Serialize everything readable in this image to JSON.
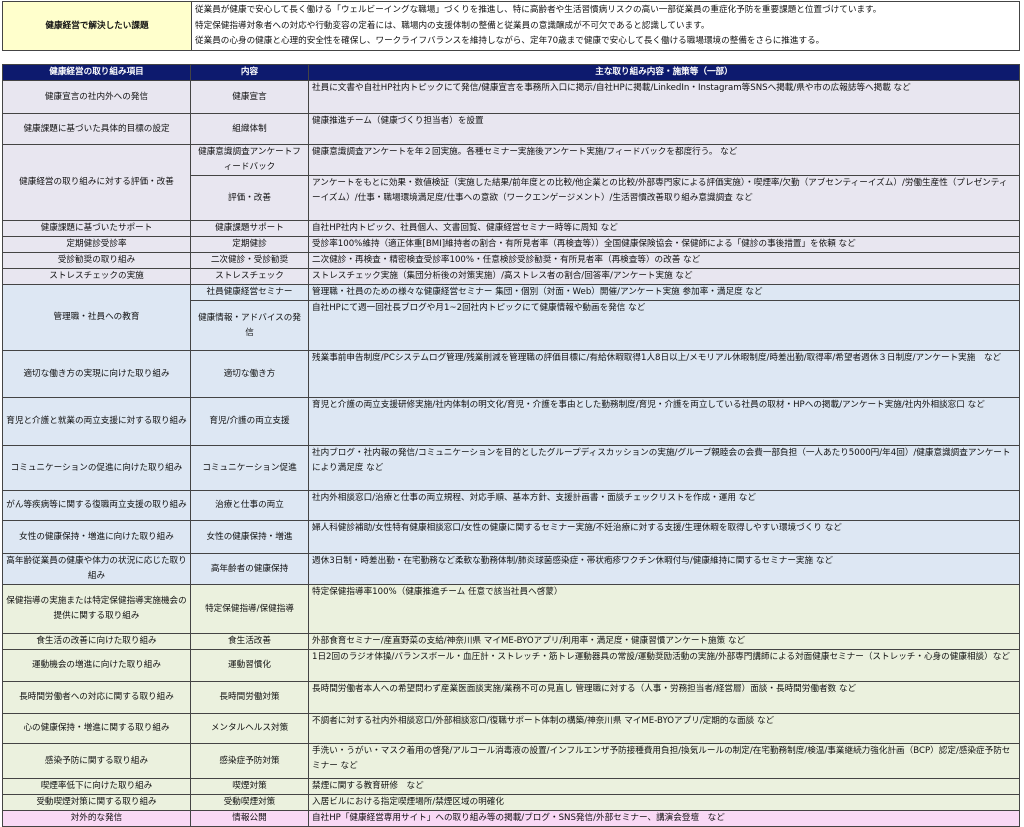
{
  "issue": {
    "label": "健康経営で解決したい課題",
    "lines": [
      "従業員が健康で安心して長く働ける「ウェルビーイングな職場」づくりを推進し、特に高齢者や生活習慣病リスクの高い一部従業員の重症化予防を重要課題と位置づけています。",
      "特定保健指導対象者への対応や行動変容の定着には、職場内の支援体制の整備と従業員の意識醸成が不可欠であると認識しています。",
      "従業員の心身の健康と心理的安全性を確保し、ワークライフバランスを維持しながら、定年70歳まで健康で安心して長く働ける職場環境の整備をさらに推進する。"
    ]
  },
  "table": {
    "headers": [
      "健康経営の取り組み項目",
      "内容",
      "主な取り組み内容・施策等（一部）"
    ],
    "colors": {
      "header": "#0d1a6e",
      "lavender": "#e8e6f0",
      "blue": "#dde7f3",
      "green": "#ebf1de",
      "pink": "#f9d9f5"
    },
    "groups": [
      {
        "item": "健康宣言の社内外への発信",
        "color": "lavender",
        "subs": [
          {
            "content": "健康宣言",
            "detail": "社員に文書や自社HP社内トピックにて発信/健康宣言を事務所入口に掲示/自社HPに掲載/LinkedIn・Instagram等SNSへ掲載/県や市の広報誌等へ掲載 など"
          }
        ]
      },
      {
        "item": "健康課題に基づいた具体的目標の設定",
        "color": "lavender",
        "subs": [
          {
            "content": "組織体制",
            "detail": "健康推進チーム（健康づくり担当者）を設置"
          }
        ]
      },
      {
        "item": "健康経営の取り組みに対する評価・改善",
        "color": "lavender",
        "subs": [
          {
            "content": "健康意識調査アンケートフィードバック",
            "detail": "健康意識調査アンケートを年２回実施。各種セミナー実施後アンケート実施/フィードバックを都度行う。 など"
          },
          {
            "content": "評価・改善",
            "detail": "アンケートをもとに効果・数値検証（実施した結果/前年度との比較/他企業との比較/外部専門家による評価実施）・喫煙率/欠勤（アブセンティーイズム）/労働生産性（プレゼンティーイズム）/仕事・職場環境満足度/仕事への意欲（ワークエンゲージメント）/生活習慣改善取り組み意識調査 など"
          }
        ]
      },
      {
        "item": "健康課題に基づいたサポート",
        "color": "lavender",
        "subs": [
          {
            "content": "健康課題サポート",
            "detail": "自社HP社内トピック、社員個人、文書回覧、健康経営セミナー時等に周知 など"
          }
        ]
      },
      {
        "item": "定期健診受診率",
        "color": "lavender",
        "subs": [
          {
            "content": "定期健診",
            "detail": "受診率100%維持（適正体重[BMI]維持者の割合・有所見者率（再検査等））全国健康保険協会・保健師による「健診の事後措置」を依頼 など"
          }
        ]
      },
      {
        "item": "受診勧奨の取り組み",
        "color": "lavender",
        "subs": [
          {
            "content": "二次健診・受診勧奨",
            "detail": "二次健診・再検査・精密検査受診率100%・任意検診受診勧奨・有所見者率（再検査等）の改善 など"
          }
        ]
      },
      {
        "item": "ストレスチェックの実施",
        "color": "lavender",
        "subs": [
          {
            "content": "ストレスチェック",
            "detail": "ストレスチェック実施（集団分析後の対策実施）/高ストレス者の割合/回答率/アンケート実施 など"
          }
        ]
      },
      {
        "item": "管理職・社員への教育",
        "color": "blue",
        "subs": [
          {
            "content": "社員健康経営セミナー",
            "detail": "管理職・社員のための様々な健康経営セミナー 集団・個別（対面・Web）開催/アンケート実施 参加率・満足度 など"
          },
          {
            "content": "健康情報・アドバイスの発信",
            "detail": "自社HPにて週一回社長ブログや月1~2回社内トピックにて健康情報や動画を発信 など"
          }
        ]
      },
      {
        "item": "適切な働き方の実現に向けた取り組み",
        "color": "blue",
        "subs": [
          {
            "content": "適切な働き方",
            "detail": "残業事前申告制度/PCシステムログ管理/残業削減を管理職の評価目標に/有給休暇取得1人8日以上/メモリアル休暇制度/時差出勤/取得率/希望者週休３日制度/アンケート実施　など"
          }
        ]
      },
      {
        "item": "育児と介護と就業の両立支援に対する取り組み",
        "color": "blue",
        "subs": [
          {
            "content": "育児/介護の両立支援",
            "detail": "育児と介護の両立支援研修実施/社内体制の明文化/育児・介護を事由とした勤務制度/育児・介護を両立している社員の取材・HPへの掲載/アンケート実施/社内外相談窓口 など"
          }
        ]
      },
      {
        "item": "コミュニケーションの促進に向けた取り組み",
        "color": "blue",
        "subs": [
          {
            "content": "コミュニケーション促進",
            "detail": "社内ブログ・社内報の発信/コミュニケーションを目的としたグループディスカッションの実施/グループ親睦会の会費一部負担（一人あたり5000円/年4回）/健康意識調査アンケートにより満足度 など"
          }
        ]
      },
      {
        "item": "がん等疾病等に関する復職両立支援の取り組み",
        "color": "blue",
        "subs": [
          {
            "content": "治療と仕事の両立",
            "detail": "社内外相談窓口/治療と仕事の両立規程、対応手順、基本方針、支援計画書・面談チェックリストを作成・運用 など"
          }
        ]
      },
      {
        "item": "女性の健康保持・増進に向けた取り組み",
        "color": "blue",
        "subs": [
          {
            "content": "女性の健康保持・増進",
            "detail": "婦人科健診補助/女性特有健康相談窓口/女性の健康に関するセミナー実施/不妊治療に対する支援/生理休暇を取得しやすい環境づくり など"
          }
        ]
      },
      {
        "item": "高年齢従業員の健康や体力の状況に応じた取り組み",
        "color": "blue",
        "subs": [
          {
            "content": "高年齢者の健康保持",
            "detail": "週休3日制・時差出勤・在宅勤務など柔軟な勤務体制/肺炎球菌感染症・帯状疱疹ワクチン休暇付与/健康維持に関するセミナー実施 など"
          }
        ]
      },
      {
        "item": "保健指導の実施または特定保健指導実施機会の提供に関する取り組み",
        "color": "green",
        "subs": [
          {
            "content": "特定保健指導/保健指導",
            "detail": "特定保健指導率100%（健康推進チーム 任意で該当社員へ啓蒙）"
          }
        ]
      },
      {
        "item": "食生活の改善に向けた取り組み",
        "color": "green",
        "subs": [
          {
            "content": "食生活改善",
            "detail": "外部食育セミナー/産直野菜の支給/神奈川県 マイME-BYOアプリ/利用率・満足度・健康習慣アンケート施策 など"
          }
        ]
      },
      {
        "item": "運動機会の増進に向けた取り組み",
        "color": "green",
        "subs": [
          {
            "content": "運動習慣化",
            "detail": "1日2回のラジオ体操/バランスボール・血圧計・ストレッチ・筋トレ運動器具の常設/運動奨励活動の実施/外部専門講師による対面健康セミナー（ストレッチ・心身の健康相談）など"
          }
        ]
      },
      {
        "item": "長時間労働者への対応に関する取り組み",
        "color": "green",
        "subs": [
          {
            "content": "長時間労働対策",
            "detail": "長時間労働者本人への希望問わず産業医面談実施/業務不可の見直し 管理職に対する（人事・労務担当者/経営層）面談・長時間労働者数 など"
          }
        ]
      },
      {
        "item": "心の健康保持・増進に関する取り組み",
        "color": "green",
        "subs": [
          {
            "content": "メンタルヘルス対策",
            "detail": "不調者に対する社内外相談窓口/外部相談窓口/復職サポート体制の構築/神奈川県 マイME-BYOアプリ/定期的な面談 など"
          }
        ]
      },
      {
        "item": "感染予防に関する取り組み",
        "color": "green",
        "subs": [
          {
            "content": "感染症予防対策",
            "detail": "手洗い・うがい・マスク着用の啓発/アルコール消毒液の設置/インフルエンザ予防接種費用負担/換気ルールの制定/在宅勤務制度/検温/事業継続力強化計画（BCP）認定/感染症予防セミナー など"
          }
        ]
      },
      {
        "item": "喫煙率低下に向けた取り組み",
        "color": "green",
        "subs": [
          {
            "content": "喫煙対策",
            "detail": "禁煙に関する教育研修　など"
          }
        ]
      },
      {
        "item": "受動喫煙対策に関する取り組み",
        "color": "green",
        "subs": [
          {
            "content": "受動喫煙対策",
            "detail": "入居ビルにおける指定喫煙場所/禁煙区域の明確化"
          }
        ]
      },
      {
        "item": "対外的な発信",
        "color": "pink",
        "subs": [
          {
            "content": "情報公開",
            "detail": "自社HP「健康経営専用サイト」への取り組み等の掲載/ブログ・SNS発信/外部セミナー、講演会登壇　など"
          }
        ]
      }
    ]
  }
}
